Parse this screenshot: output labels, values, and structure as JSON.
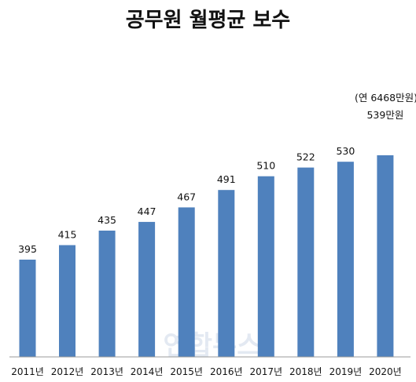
{
  "chart_data": {
    "type": "bar",
    "title": "공무원 월평균 보수",
    "categories": [
      "2011년",
      "2012년",
      "2013년",
      "2014년",
      "2015년",
      "2016년",
      "2017년",
      "2018년",
      "2019년",
      "2020년"
    ],
    "values": [
      395,
      415,
      435,
      447,
      467,
      491,
      510,
      522,
      530,
      539
    ],
    "data_labels": [
      "395",
      "415",
      "435",
      "447",
      "467",
      "491",
      "510",
      "522",
      "530",
      "539만원"
    ],
    "annotation": "(연 6468만원)",
    "xlabel": "",
    "ylabel": "",
    "grid": false,
    "bar_color": "#4f81bd",
    "axis_color": "#9a9a9a"
  }
}
